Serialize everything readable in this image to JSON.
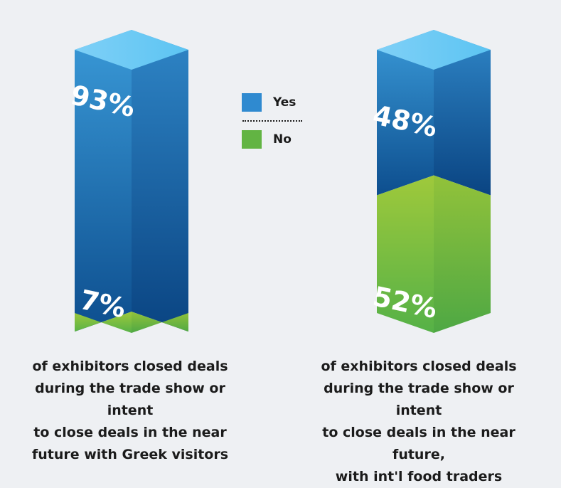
{
  "chart_data": {
    "type": "bar",
    "style": "3d-stacked-percent-column",
    "series": [
      {
        "name": "Yes",
        "color": "#2f8ad0",
        "values": [
          93,
          48
        ]
      },
      {
        "name": "No",
        "color": "#62b443",
        "values": [
          7,
          52
        ]
      }
    ],
    "value_labels": [
      {
        "yes": "93%",
        "no": "7%"
      },
      {
        "yes": "48%",
        "no": "52%"
      }
    ],
    "captions": [
      "of exhibitors closed deals during the trade show or intent to close deals in the near future with Greek visitors",
      "of exhibitors closed deals during the trade show or intent to close deals in the near future, with int'l food traders"
    ],
    "caption_lines": [
      [
        "of exhibitors closed deals",
        "during the trade show or intent",
        "to close deals in the near",
        "future with Greek visitors"
      ],
      [
        "of exhibitors closed deals",
        "during the trade show or intent",
        "to close deals in the near future,",
        "with int'l food traders"
      ]
    ],
    "ylim": [
      0,
      100
    ],
    "grid": false,
    "legend_position": "center"
  },
  "legend": {
    "yes_label": "Yes",
    "no_label": "No",
    "yes_color": "#2f8ad0",
    "no_color": "#62b443"
  }
}
